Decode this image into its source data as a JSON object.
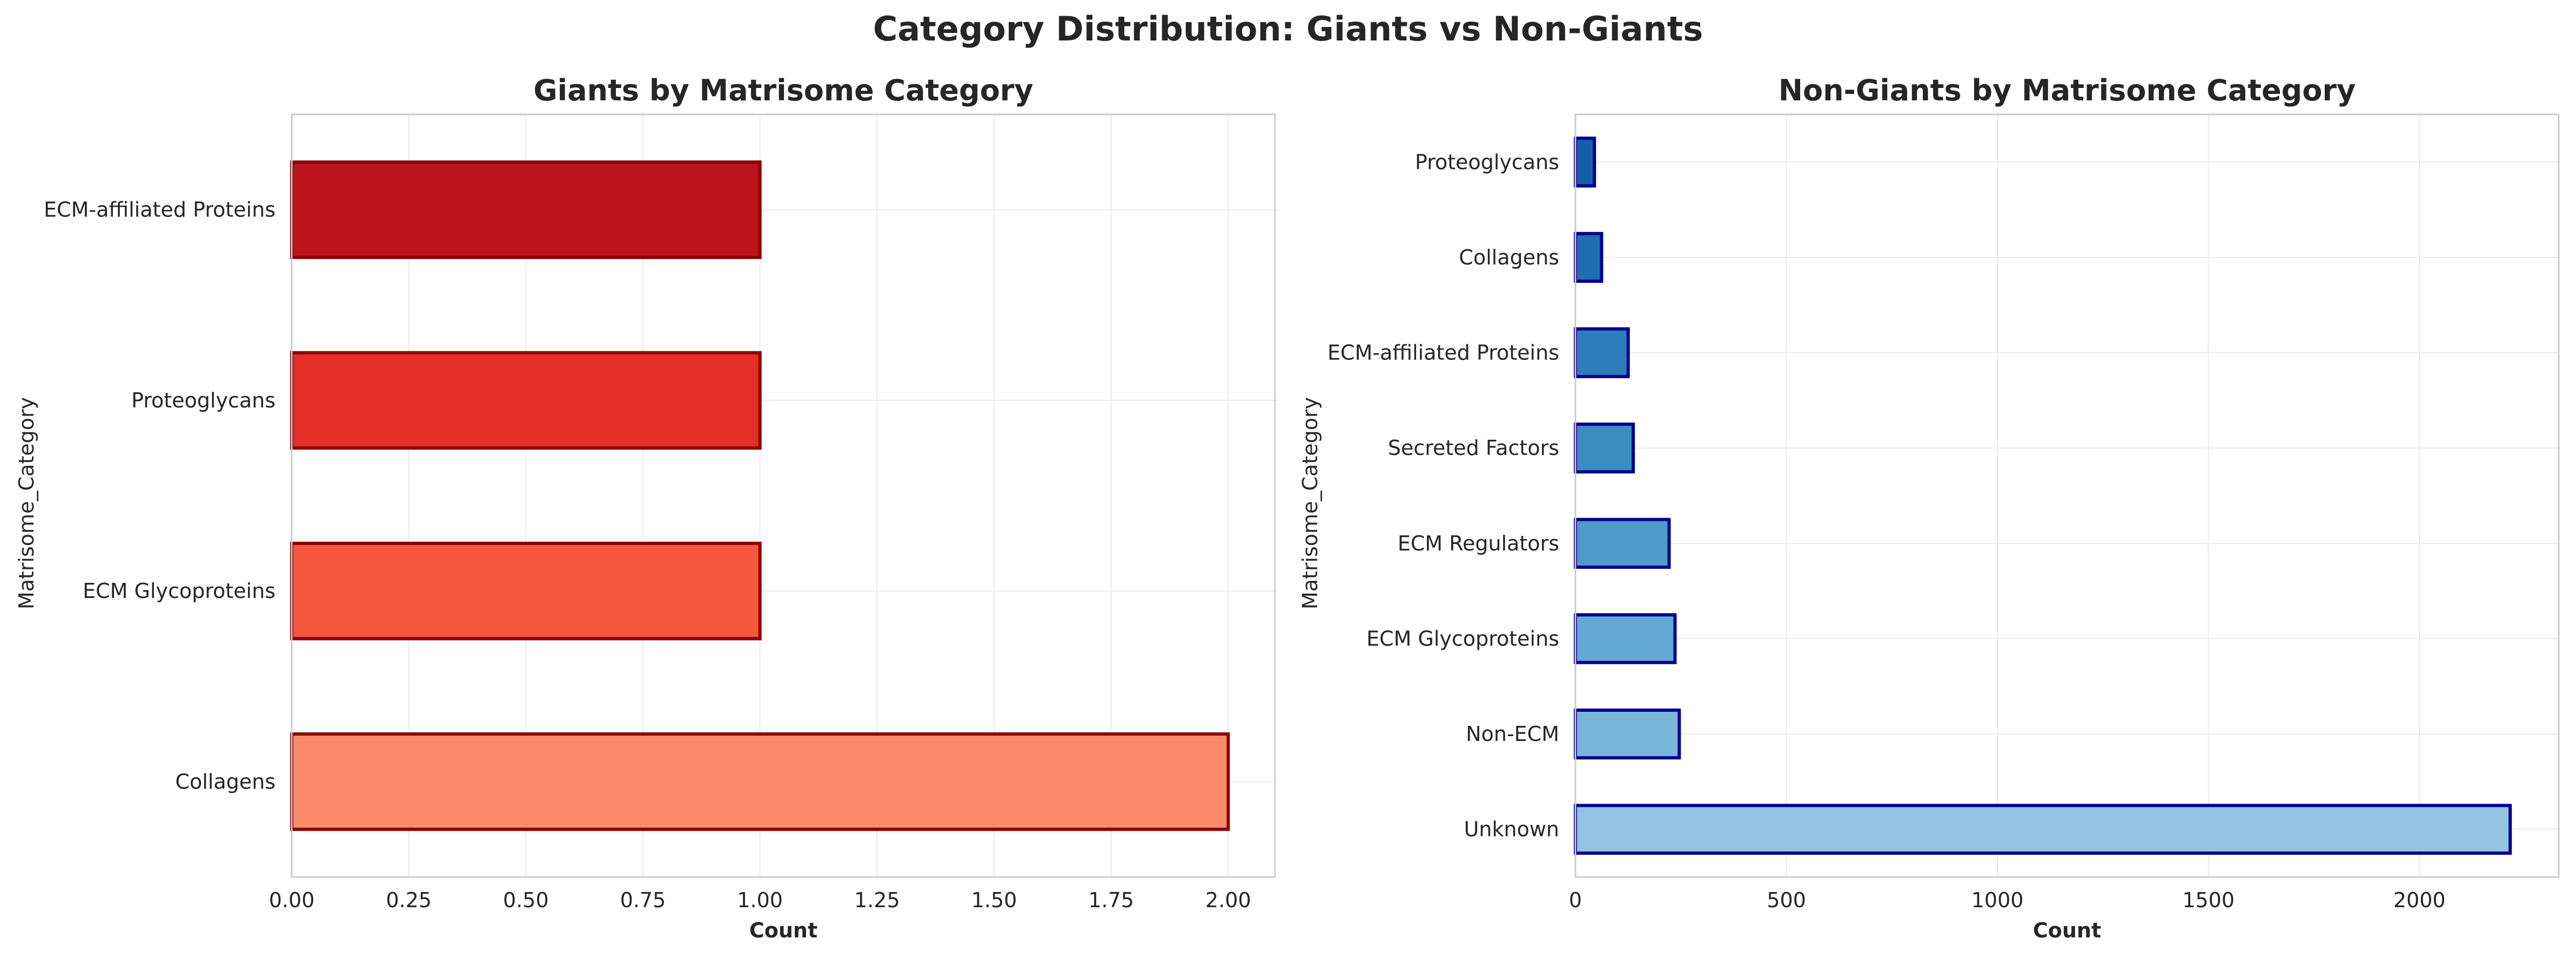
{
  "figure": {
    "title": "Category Distribution: Giants vs Non-Giants"
  },
  "chart_data": [
    {
      "type": "bar",
      "orientation": "horizontal",
      "title": "Giants by Matrisome Category",
      "xlabel": "Count",
      "ylabel": "Matrisome_Category",
      "categories": [
        "Collagens",
        "ECM Glycoproteins",
        "Proteoglycans",
        "ECM-affiliated Proteins"
      ],
      "values": [
        2,
        1,
        1,
        1
      ],
      "xlim": [
        0,
        2.1
      ],
      "xticks": [
        0,
        0.25,
        0.5,
        0.75,
        1.0,
        1.25,
        1.5,
        1.75,
        2.0
      ],
      "xtick_labels": [
        "0.00",
        "0.25",
        "0.50",
        "0.75",
        "1.00",
        "1.25",
        "1.50",
        "1.75",
        "2.00"
      ],
      "grid": true,
      "colors": [
        "#fb8a6a",
        "#f6583e",
        "#e32f27",
        "#bc141a"
      ],
      "edge_color": "#8b0000"
    },
    {
      "type": "bar",
      "orientation": "horizontal",
      "title": "Non-Giants by Matrisome Category",
      "xlabel": "Count",
      "ylabel": "Matrisome_Category",
      "categories": [
        "Unknown",
        "Non-ECM",
        "ECM Glycoproteins",
        "ECM Regulators",
        "Secreted Factors",
        "ECM-affiliated Proteins",
        "Collagens",
        "Proteoglycans"
      ],
      "values": [
        2215,
        246,
        236,
        222,
        137,
        125,
        62,
        45
      ],
      "xlim": [
        0,
        2330
      ],
      "xticks": [
        0,
        500,
        1000,
        1500,
        2000
      ],
      "xtick_labels": [
        "0",
        "500",
        "1000",
        "1500",
        "2000"
      ],
      "grid": true,
      "colors": [
        "#94c4df",
        "#7ab6d9",
        "#64a9d3",
        "#4e9acb",
        "#3c8bc3",
        "#2d7dbb",
        "#1f6eb3",
        "#1460a8"
      ],
      "edge_color": "#00008b"
    }
  ]
}
